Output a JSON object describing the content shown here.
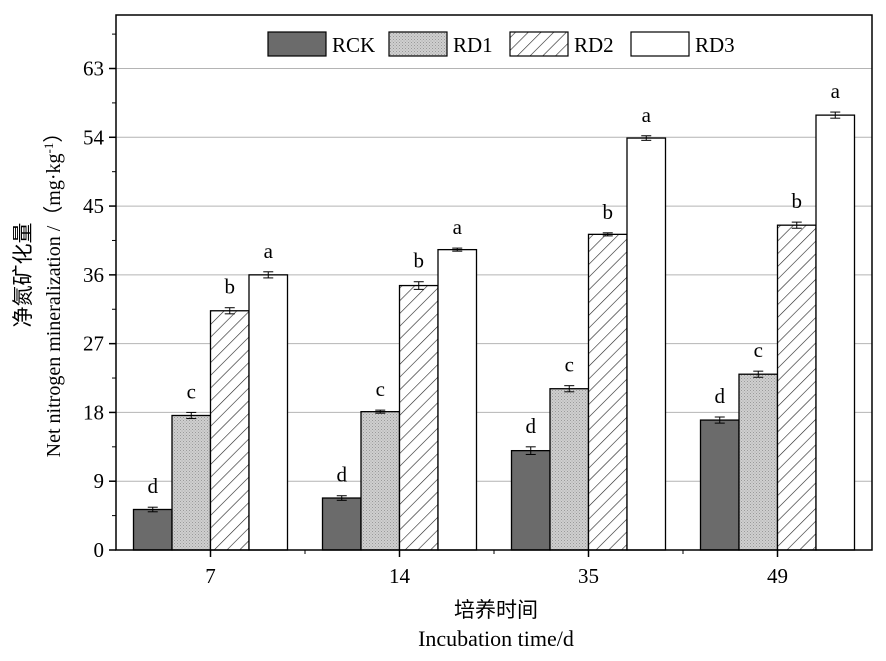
{
  "chart_data": {
    "type": "bar",
    "title": "",
    "xlabel_cn": "培养时间",
    "xlabel_en": "Incubation time/d",
    "ylabel_cn": "净氮矿化量",
    "ylabel_en": "Net nitrogen mineralization /（mg·kg",
    "ylabel_sup": "-1",
    "ylabel_close": "）",
    "categories": [
      "7",
      "14",
      "35",
      "49"
    ],
    "ylim": [
      0,
      70
    ],
    "yticks": [
      0,
      9,
      18,
      27,
      36,
      45,
      54,
      63
    ],
    "grid": true,
    "legend_position": "top",
    "series": [
      {
        "name": "RCK",
        "values": [
          5.3,
          6.8,
          13.0,
          17.0
        ],
        "errors": [
          0.3,
          0.3,
          0.5,
          0.4
        ],
        "letters": [
          "d",
          "d",
          "d",
          "d"
        ],
        "fill": "#6b6b6b",
        "pattern": "solid"
      },
      {
        "name": "RD1",
        "values": [
          17.6,
          18.1,
          21.1,
          23.0
        ],
        "errors": [
          0.4,
          0.2,
          0.4,
          0.4
        ],
        "letters": [
          "c",
          "c",
          "c",
          "c"
        ],
        "fill": "#c8c8c8",
        "pattern": "dots"
      },
      {
        "name": "RD2",
        "values": [
          31.3,
          34.6,
          41.3,
          42.5
        ],
        "errors": [
          0.4,
          0.5,
          0.2,
          0.4
        ],
        "letters": [
          "b",
          "b",
          "b",
          "b"
        ],
        "fill": "#ffffff",
        "pattern": "hatch"
      },
      {
        "name": "RD3",
        "values": [
          36.0,
          39.3,
          53.9,
          56.9
        ],
        "errors": [
          0.4,
          0.2,
          0.3,
          0.4
        ],
        "letters": [
          "a",
          "a",
          "a",
          "a"
        ],
        "fill": "#ffffff",
        "pattern": "solid"
      }
    ]
  }
}
